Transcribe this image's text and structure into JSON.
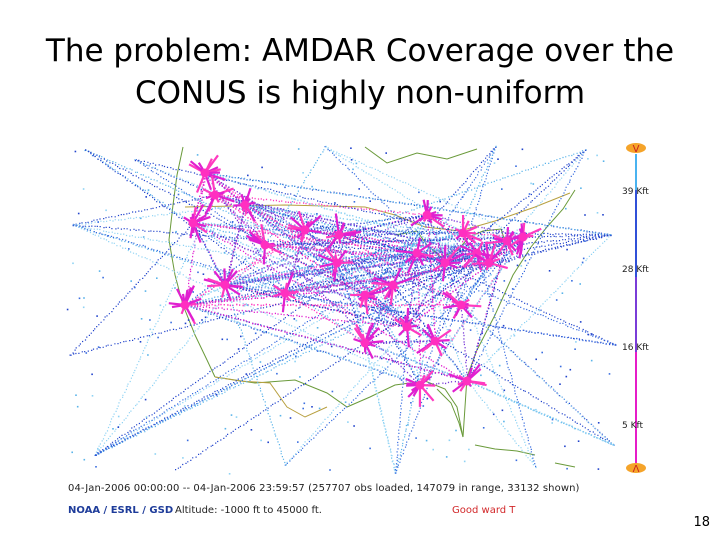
{
  "slide": {
    "title_line1": "The problem: AMDAR Coverage over the",
    "title_line2": "CONUS is highly non-uniform",
    "page_number": "18"
  },
  "map": {
    "status_text": "04-Jan-2006 00:00:00 -- 04-Jan-2006 23:59:57 (257707 obs loaded, 147079 in range, 33132 shown)",
    "brand_text": "NOAA / ESRL / GSD",
    "altitude_text": "Altitude: -1000 ft to 45000 ft.",
    "credit_text": "Good ward T",
    "legend": {
      "labels": [
        "39 Kft",
        "28 Kft",
        "16 Kft",
        "5 Kft"
      ],
      "top_marker": "V",
      "bottom_marker": "Λ",
      "colors": {
        "low": "#e61cc8",
        "mid": "#3050d8",
        "high": "#4ab3f0",
        "marker": "#f5a42a",
        "marker_text": "#c81e1e"
      }
    },
    "track_colors": [
      "#2244cc",
      "#3a6ee0",
      "#5ab4ea",
      "#8fd3f4",
      "#e020d0",
      "#ff3ac0",
      "#7a3cd8"
    ],
    "basemap_colors": {
      "coast": "#6a9a3a",
      "border": "#b8a040"
    }
  }
}
